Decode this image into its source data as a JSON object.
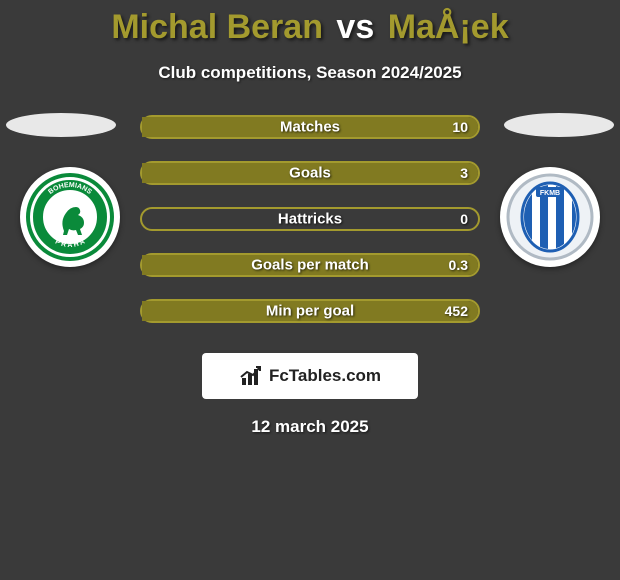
{
  "title": {
    "player1": "Michal Beran",
    "vs": "vs",
    "player2": "MaÅ¡ek"
  },
  "subtitle": "Club competitions, Season 2024/2025",
  "colors": {
    "olive": "#a39a2e",
    "olive_dark": "#817a21",
    "background": "#3a3a3a",
    "text": "#ffffff"
  },
  "badges": {
    "left": {
      "name": "Bohemians Praha",
      "ring_color": "#0a8a3a",
      "inner_bg": "#ffffff",
      "text_color": "#0a8a3a"
    },
    "right": {
      "name": "FK Mladá Boleslav",
      "stripe_colors": [
        "#1e5fb3",
        "#ffffff"
      ],
      "ring_color": "#c0c8d0"
    }
  },
  "bars": [
    {
      "label": "Matches",
      "value_left": null,
      "value_right": "10",
      "fill_left_pct": 0,
      "fill_right_pct": 100
    },
    {
      "label": "Goals",
      "value_left": null,
      "value_right": "3",
      "fill_left_pct": 0,
      "fill_right_pct": 100
    },
    {
      "label": "Hattricks",
      "value_left": null,
      "value_right": "0",
      "fill_left_pct": 0,
      "fill_right_pct": 0
    },
    {
      "label": "Goals per match",
      "value_left": null,
      "value_right": "0.3",
      "fill_left_pct": 0,
      "fill_right_pct": 100
    },
    {
      "label": "Min per goal",
      "value_left": null,
      "value_right": "452",
      "fill_left_pct": 0,
      "fill_right_pct": 100
    }
  ],
  "logo_text": "FcTables.com",
  "date": "12 march 2025"
}
